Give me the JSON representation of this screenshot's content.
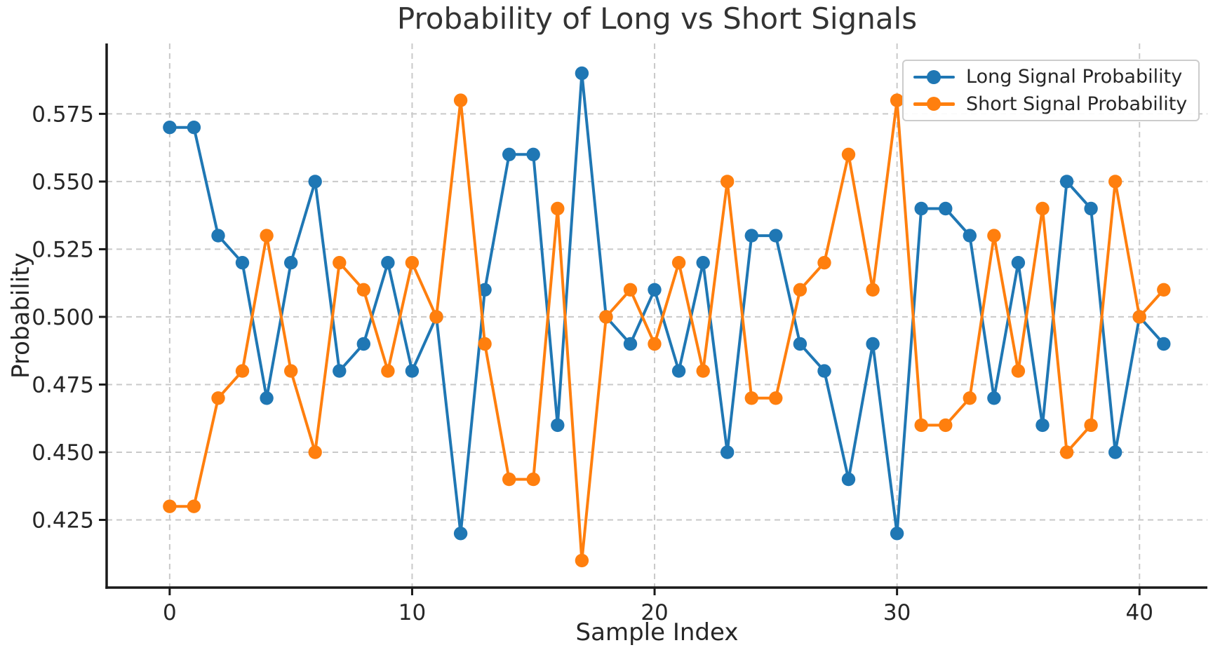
{
  "chart_data": {
    "type": "line",
    "title": "Probability of Long vs Short Signals",
    "xlabel": "Sample Index",
    "ylabel": "Probability",
    "x": [
      0,
      1,
      2,
      3,
      4,
      5,
      6,
      7,
      8,
      9,
      10,
      11,
      12,
      13,
      14,
      15,
      16,
      17,
      18,
      19,
      20,
      21,
      22,
      23,
      24,
      25,
      26,
      27,
      28,
      29,
      30,
      31,
      32,
      33,
      34,
      35,
      36,
      37,
      38,
      39,
      40,
      41
    ],
    "series": [
      {
        "name": "Long Signal Probability",
        "color": "#1f77b4",
        "values": [
          0.57,
          0.57,
          0.53,
          0.52,
          0.47,
          0.52,
          0.55,
          0.48,
          0.49,
          0.52,
          0.48,
          0.5,
          0.42,
          0.51,
          0.56,
          0.56,
          0.46,
          0.59,
          0.5,
          0.49,
          0.51,
          0.48,
          0.52,
          0.45,
          0.53,
          0.53,
          0.49,
          0.48,
          0.44,
          0.49,
          0.42,
          0.54,
          0.54,
          0.53,
          0.47,
          0.52,
          0.46,
          0.55,
          0.54,
          0.45,
          0.5,
          0.49
        ]
      },
      {
        "name": "Short Signal Probability",
        "color": "#ff7f0e",
        "values": [
          0.43,
          0.43,
          0.47,
          0.48,
          0.53,
          0.48,
          0.45,
          0.52,
          0.51,
          0.48,
          0.52,
          0.5,
          0.58,
          0.49,
          0.44,
          0.44,
          0.54,
          0.41,
          0.5,
          0.51,
          0.49,
          0.52,
          0.48,
          0.55,
          0.47,
          0.47,
          0.51,
          0.52,
          0.56,
          0.51,
          0.58,
          0.46,
          0.46,
          0.47,
          0.53,
          0.48,
          0.54,
          0.45,
          0.46,
          0.55,
          0.5,
          0.51
        ]
      }
    ],
    "xticks": [
      0,
      10,
      20,
      30,
      40
    ],
    "xtick_labels": [
      "0",
      "10",
      "20",
      "30",
      "40"
    ],
    "yticks": [
      0.425,
      0.45,
      0.475,
      0.5,
      0.525,
      0.55,
      0.575
    ],
    "ytick_labels": [
      "0.425",
      "0.450",
      "0.475",
      "0.500",
      "0.525",
      "0.550",
      "0.575"
    ],
    "xlim": [
      -2.6,
      42.8
    ],
    "ylim": [
      0.4,
      0.601
    ],
    "grid": true,
    "grid_style": "dashed",
    "legend_position": "upper right",
    "colors": {
      "grid": "#c9c9c9",
      "spine": "#1a1a1a",
      "tick_label": "#262626",
      "title": "#333333"
    }
  }
}
